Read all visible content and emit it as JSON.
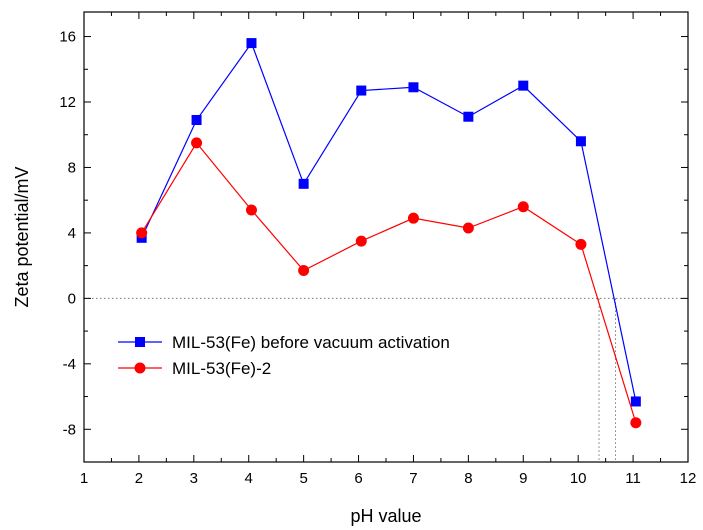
{
  "chart_data": {
    "type": "line",
    "xlabel": "pH value",
    "ylabel": "Zeta potential/mV",
    "xlim": [
      1,
      12
    ],
    "ylim": [
      -10,
      17.5
    ],
    "xticks": [
      1,
      2,
      3,
      4,
      5,
      6,
      7,
      8,
      9,
      10,
      11,
      12
    ],
    "yticks": [
      -8,
      -4,
      0,
      4,
      8,
      12,
      16
    ],
    "grid": false,
    "legend_position": "lower-left",
    "reference_lines": {
      "horizontal_zero": 0,
      "vertical_drops": [
        10.38,
        10.68
      ]
    },
    "series": [
      {
        "name": "MIL-53(Fe) before vacuum activation",
        "color": "#0000ff",
        "marker": "square",
        "x": [
          2.05,
          3.05,
          4.05,
          5.0,
          6.05,
          7.0,
          8.0,
          9.0,
          10.05,
          11.05
        ],
        "y": [
          3.7,
          10.9,
          15.6,
          7.0,
          12.7,
          12.9,
          11.1,
          13.0,
          9.6,
          -6.3
        ]
      },
      {
        "name": "MIL-53(Fe)-2",
        "color": "#ff0000",
        "marker": "circle",
        "x": [
          2.05,
          3.05,
          4.05,
          5.0,
          6.05,
          7.0,
          8.0,
          9.0,
          10.05,
          11.05
        ],
        "y": [
          4.0,
          9.5,
          5.4,
          1.7,
          3.5,
          4.9,
          4.3,
          5.6,
          3.3,
          -7.6
        ]
      }
    ]
  }
}
